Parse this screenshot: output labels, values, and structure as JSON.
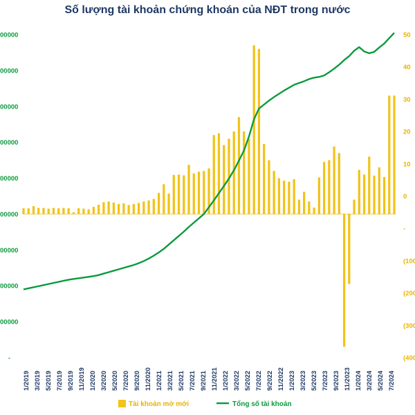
{
  "chart_data": {
    "type": "bar",
    "title": "Số lượng tài khoản chứng khoán của NĐT trong nước",
    "xlabel": "",
    "ylabel": "",
    "grid": false,
    "legend_position": "bottom",
    "left_axis": {
      "range": [
        0,
        9000000
      ]
    },
    "right_axis": {
      "range": [
        -400000,
        500000
      ]
    },
    "left_tick_labels": [
      "",
      "00000",
      "00000",
      "00000",
      "00000",
      "00000",
      "00000",
      "00000",
      "00000",
      "00000"
    ],
    "right_tick_labels": [
      "(400",
      "(300",
      "(200",
      "(100",
      "",
      "0",
      "10",
      "20",
      "30",
      "40",
      "50"
    ],
    "x_tick_labels": [
      "1/2019",
      "3/2019",
      "5/2019",
      "7/2019",
      "9/2019",
      "11/2019",
      "1/2020",
      "3/2020",
      "5/2020",
      "7/2020",
      "9/2020",
      "11/2020",
      "1/2021",
      "3/2021",
      "5/2021",
      "7/2021",
      "9/2021",
      "11/2021",
      "1/2022",
      "3/2022",
      "5/2022",
      "7/2022",
      "9/2022",
      "11/2022",
      "1/2023",
      "3/2023",
      "5/2023",
      "7/2023",
      "9/2023",
      "11/2023",
      "1/2024",
      "3/2024",
      "5/2024",
      "7/2024"
    ],
    "series": [
      {
        "name": "Tài khoản mở mới",
        "type": "bar",
        "axis": "right",
        "color": "#f2c318",
        "values": [
          16000,
          16000,
          22000,
          17000,
          17000,
          15000,
          17000,
          16000,
          17000,
          16000,
          5000,
          16000,
          15000,
          13000,
          20000,
          26000,
          33000,
          35000,
          32000,
          28000,
          30000,
          25000,
          28000,
          31000,
          35000,
          38000,
          42000,
          59000,
          83000,
          57000,
          109000,
          110000,
          108000,
          137000,
          113000,
          118000,
          120000,
          127000,
          220000,
          225000,
          192000,
          210000,
          230000,
          270000,
          230000,
          210000,
          470000,
          460000,
          195000,
          150000,
          120000,
          100000,
          93000,
          90000,
          97000,
          40000,
          62000,
          35000,
          18000,
          102000,
          145000,
          150000,
          188000,
          170000,
          -370000,
          -195000,
          40000,
          123000,
          110000,
          160000,
          107000,
          130000,
          103000,
          330000,
          330000
        ]
      },
      {
        "name": "Tổng số tài khoản",
        "type": "line",
        "axis": "left",
        "color": "#0a9a3c",
        "values": [
          1900000,
          1930000,
          1960000,
          1990000,
          2020000,
          2050000,
          2080000,
          2110000,
          2140000,
          2170000,
          2190000,
          2210000,
          2230000,
          2250000,
          2270000,
          2300000,
          2340000,
          2380000,
          2420000,
          2460000,
          2500000,
          2540000,
          2580000,
          2630000,
          2690000,
          2760000,
          2840000,
          2930000,
          3030000,
          3150000,
          3270000,
          3390000,
          3510000,
          3640000,
          3760000,
          3880000,
          4000000,
          4190000,
          4380000,
          4580000,
          4780000,
          4990000,
          5220000,
          5490000,
          5770000,
          6160000,
          6640000,
          6940000,
          7050000,
          7160000,
          7260000,
          7350000,
          7440000,
          7520000,
          7600000,
          7650000,
          7700000,
          7760000,
          7800000,
          7820000,
          7860000,
          7950000,
          8050000,
          8160000,
          8290000,
          8400000,
          8550000,
          8650000,
          8530000,
          8480000,
          8520000,
          8640000,
          8750000,
          8900000,
          9050000
        ]
      }
    ]
  }
}
